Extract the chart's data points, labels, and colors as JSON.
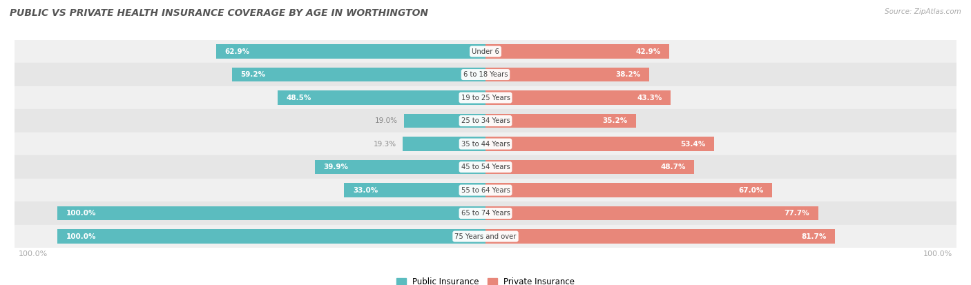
{
  "title": "PUBLIC VS PRIVATE HEALTH INSURANCE COVERAGE BY AGE IN WORTHINGTON",
  "source": "Source: ZipAtlas.com",
  "categories": [
    "Under 6",
    "6 to 18 Years",
    "19 to 25 Years",
    "25 to 34 Years",
    "35 to 44 Years",
    "45 to 54 Years",
    "55 to 64 Years",
    "65 to 74 Years",
    "75 Years and over"
  ],
  "public_values": [
    62.9,
    59.2,
    48.5,
    19.0,
    19.3,
    39.9,
    33.0,
    100.0,
    100.0
  ],
  "private_values": [
    42.9,
    38.2,
    43.3,
    35.2,
    53.4,
    48.7,
    67.0,
    77.7,
    81.7
  ],
  "public_color": "#5bbcbf",
  "private_color": "#e8877a",
  "row_bg_even": "#f0f0f0",
  "row_bg_odd": "#e6e6e6",
  "bar_height": 0.62,
  "title_color": "#555555",
  "value_color_inside": "#ffffff",
  "value_color_outside": "#888888",
  "center_label_color": "#444444",
  "axis_label_color": "#aaaaaa",
  "max_val": 100.0,
  "figsize": [
    14.06,
    4.13
  ],
  "dpi": 100,
  "inside_threshold_pub": 25,
  "inside_threshold_priv": 25
}
